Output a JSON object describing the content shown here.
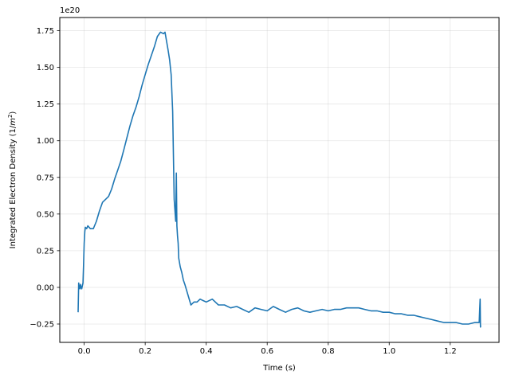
{
  "chart_data": {
    "type": "line",
    "title": "",
    "xlabel": "Time (s)",
    "ylabel_text": "Integrated Electron Density (1/",
    "ylabel_unit_base": "m",
    "ylabel_unit_exp": "2",
    "ylabel_close": ")",
    "y_offset_text": "1e20",
    "xlim": [
      -0.08,
      1.36
    ],
    "ylim": [
      -0.375,
      1.84
    ],
    "grid": true,
    "legend": "none",
    "line_color": "#1f77b4",
    "x_ticks": [
      0.0,
      0.2,
      0.4,
      0.6,
      0.8,
      1.0,
      1.2
    ],
    "x_tick_labels": [
      "0.0",
      "0.2",
      "0.4",
      "0.6",
      "0.8",
      "1.0",
      "1.2"
    ],
    "y_ticks": [
      -0.25,
      0.0,
      0.25,
      0.5,
      0.75,
      1.0,
      1.25,
      1.5,
      1.75
    ],
    "y_tick_labels": [
      "−0.25",
      "0.00",
      "0.25",
      "0.50",
      "0.75",
      "1.00",
      "1.25",
      "1.50",
      "1.75"
    ],
    "series": [
      {
        "x": [
          -0.02,
          -0.018,
          -0.016,
          -0.014,
          -0.012,
          -0.01,
          -0.008,
          -0.006,
          -0.004,
          -0.002,
          0.0,
          0.002,
          0.004,
          0.008,
          0.012,
          0.02,
          0.03,
          0.04,
          0.05,
          0.06,
          0.07,
          0.08,
          0.09,
          0.1,
          0.11,
          0.12,
          0.13,
          0.14,
          0.15,
          0.16,
          0.17,
          0.18,
          0.19,
          0.2,
          0.21,
          0.22,
          0.23,
          0.24,
          0.25,
          0.26,
          0.265,
          0.27,
          0.275,
          0.28,
          0.285,
          0.29,
          0.295,
          0.3,
          0.302,
          0.304,
          0.306,
          0.308,
          0.31,
          0.315,
          0.32,
          0.325,
          0.33,
          0.34,
          0.35,
          0.36,
          0.37,
          0.38,
          0.39,
          0.4,
          0.42,
          0.44,
          0.46,
          0.48,
          0.5,
          0.52,
          0.54,
          0.56,
          0.58,
          0.6,
          0.62,
          0.64,
          0.66,
          0.68,
          0.7,
          0.72,
          0.74,
          0.76,
          0.78,
          0.8,
          0.82,
          0.84,
          0.86,
          0.88,
          0.9,
          0.92,
          0.94,
          0.96,
          0.98,
          1.0,
          1.02,
          1.04,
          1.06,
          1.08,
          1.1,
          1.12,
          1.14,
          1.16,
          1.18,
          1.2,
          1.22,
          1.24,
          1.26,
          1.28,
          1.295,
          1.298,
          1.299,
          1.3
        ],
        "y": [
          -0.17,
          0.03,
          0.0,
          -0.01,
          0.02,
          0.0,
          -0.01,
          0.01,
          0.03,
          0.15,
          0.3,
          0.38,
          0.41,
          0.4,
          0.42,
          0.4,
          0.4,
          0.45,
          0.52,
          0.58,
          0.6,
          0.62,
          0.67,
          0.74,
          0.8,
          0.86,
          0.94,
          1.02,
          1.1,
          1.17,
          1.23,
          1.3,
          1.38,
          1.45,
          1.52,
          1.58,
          1.64,
          1.71,
          1.74,
          1.73,
          1.74,
          1.68,
          1.62,
          1.55,
          1.45,
          1.2,
          0.6,
          0.45,
          0.78,
          0.42,
          0.35,
          0.3,
          0.2,
          0.14,
          0.1,
          0.05,
          0.02,
          -0.05,
          -0.12,
          -0.1,
          -0.1,
          -0.08,
          -0.09,
          -0.1,
          -0.08,
          -0.12,
          -0.12,
          -0.14,
          -0.13,
          -0.15,
          -0.17,
          -0.14,
          -0.15,
          -0.16,
          -0.13,
          -0.15,
          -0.17,
          -0.15,
          -0.14,
          -0.16,
          -0.17,
          -0.16,
          -0.15,
          -0.16,
          -0.15,
          -0.15,
          -0.14,
          -0.14,
          -0.14,
          -0.15,
          -0.16,
          -0.16,
          -0.17,
          -0.17,
          -0.18,
          -0.18,
          -0.19,
          -0.19,
          -0.2,
          -0.21,
          -0.22,
          -0.23,
          -0.24,
          -0.24,
          -0.24,
          -0.25,
          -0.25,
          -0.24,
          -0.24,
          -0.08,
          -0.27,
          -0.26
        ]
      }
    ]
  }
}
